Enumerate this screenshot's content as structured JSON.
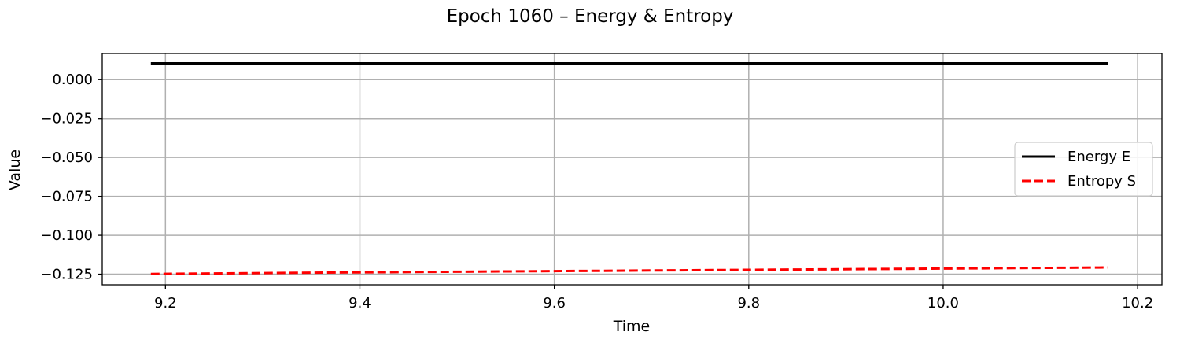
{
  "chart_data": {
    "type": "line",
    "title": "Epoch 1060 – Energy & Entropy",
    "xlabel": "Time",
    "ylabel": "Value",
    "xlim": [
      9.135,
      10.225
    ],
    "ylim": [
      -0.1318,
      0.0168
    ],
    "x_ticks": [
      9.2,
      9.4,
      9.6,
      9.8,
      10.0,
      10.2
    ],
    "x_tick_labels": [
      "9.2",
      "9.4",
      "9.6",
      "9.8",
      "10.0",
      "10.2"
    ],
    "y_ticks": [
      0.0,
      -0.025,
      -0.05,
      -0.075,
      -0.1,
      -0.125
    ],
    "y_tick_labels": [
      "0.000",
      "−0.025",
      "−0.050",
      "−0.075",
      "−0.100",
      "−0.125"
    ],
    "grid": true,
    "legend_position": "center-right",
    "series": [
      {
        "name": "Energy E",
        "color": "#000000",
        "style": "solid",
        "x": [
          9.185,
          10.17
        ],
        "y": [
          0.0105,
          0.0105
        ]
      },
      {
        "name": "Entropy S",
        "color": "#ff0000",
        "style": "dashed",
        "x": [
          9.185,
          9.4,
          9.6,
          9.8,
          10.0,
          10.17
        ],
        "y": [
          -0.1248,
          -0.1238,
          -0.123,
          -0.1222,
          -0.1214,
          -0.1207
        ]
      }
    ]
  }
}
